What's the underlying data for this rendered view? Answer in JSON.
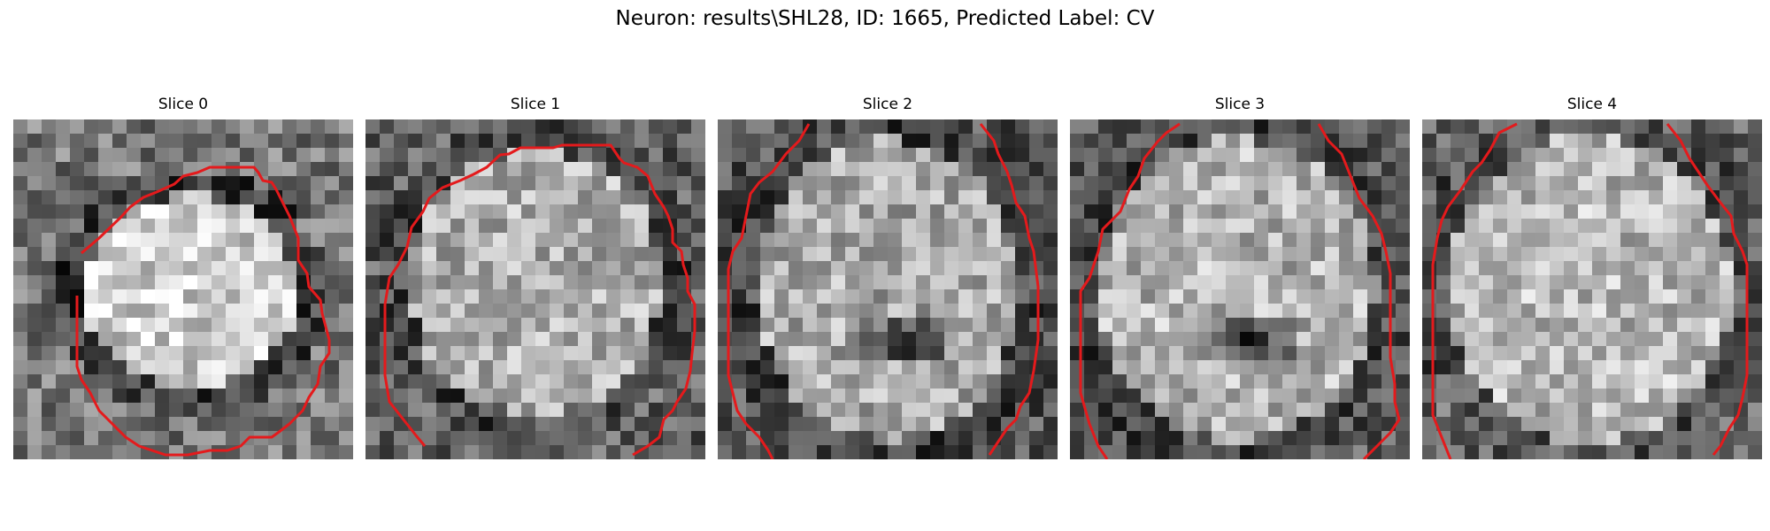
{
  "figure": {
    "title": "Neuron: results\\SHL28, ID: 1665, Predicted Label: CV"
  },
  "panels": [
    {
      "title": "Slice 0"
    },
    {
      "title": "Slice 1"
    },
    {
      "title": "Slice 2"
    },
    {
      "title": "Slice 3"
    },
    {
      "title": "Slice 4"
    }
  ],
  "contour_color": "#e41a1c",
  "colormap": "gray"
}
